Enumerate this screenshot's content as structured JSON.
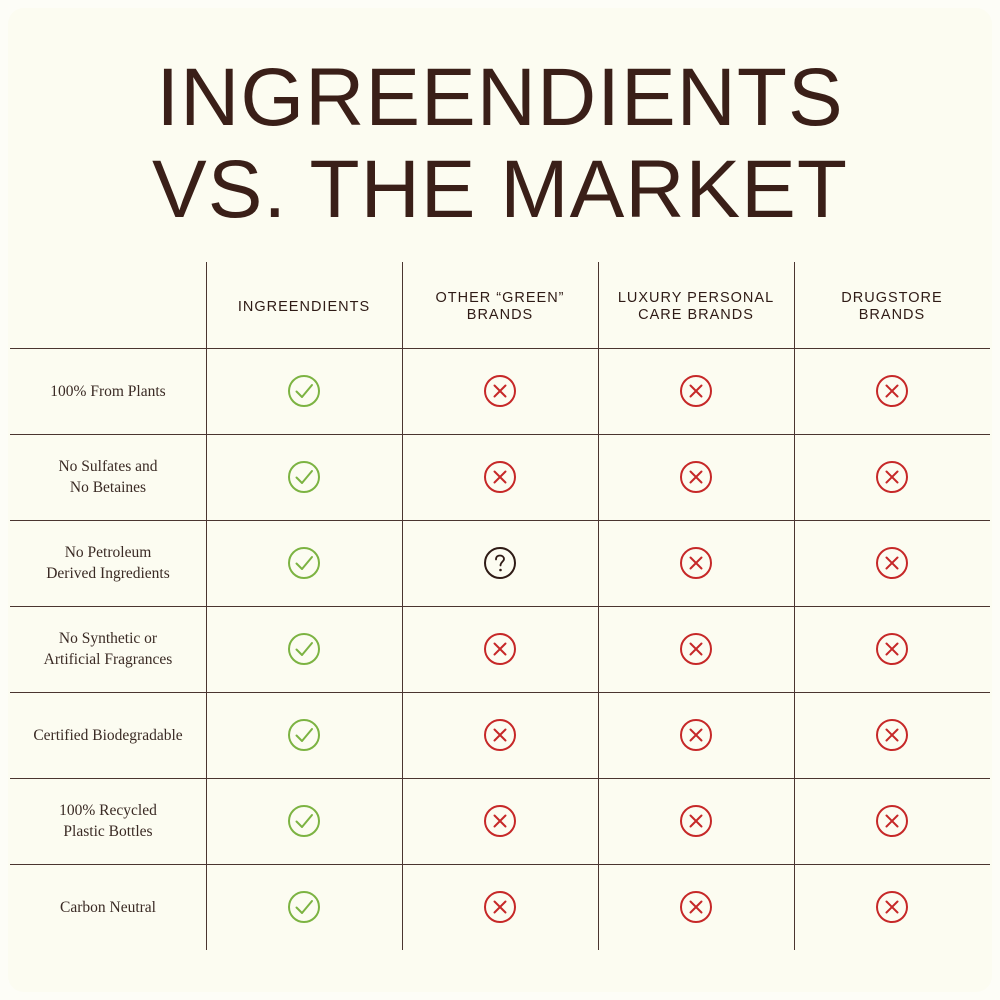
{
  "title": {
    "line1": "INGREENDIENTS",
    "line2": "VS. THE MARKET"
  },
  "colors": {
    "background": "#fcfcf1",
    "text": "#3a1f18",
    "check": "#7cb342",
    "cross": "#c62828",
    "question": "#2f1b16"
  },
  "columns": [
    {
      "line1": "INGREENDIENTS",
      "line2": ""
    },
    {
      "line1": "OTHER “GREEN”",
      "line2": "BRANDS"
    },
    {
      "line1": "LUXURY PERSONAL",
      "line2": "CARE BRANDS"
    },
    {
      "line1": "DRUGSTORE",
      "line2": "BRANDS"
    }
  ],
  "rows": [
    {
      "label": "100% From Plants",
      "values": [
        "check",
        "cross",
        "cross",
        "cross"
      ]
    },
    {
      "label": "No Sulfates and\nNo Betaines",
      "values": [
        "check",
        "cross",
        "cross",
        "cross"
      ]
    },
    {
      "label": "No Petroleum\nDerived Ingredients",
      "values": [
        "check",
        "question",
        "cross",
        "cross"
      ]
    },
    {
      "label": "No Synthetic or\nArtificial Fragrances",
      "values": [
        "check",
        "cross",
        "cross",
        "cross"
      ]
    },
    {
      "label": "Certified Biodegradable",
      "values": [
        "check",
        "cross",
        "cross",
        "cross"
      ]
    },
    {
      "label": "100% Recycled\nPlastic Bottles",
      "values": [
        "check",
        "cross",
        "cross",
        "cross"
      ]
    },
    {
      "label": "Carbon Neutral",
      "values": [
        "check",
        "cross",
        "cross",
        "cross"
      ]
    }
  ],
  "icons": {
    "check": "check-circle-icon",
    "cross": "x-circle-icon",
    "question": "question-circle-icon"
  }
}
